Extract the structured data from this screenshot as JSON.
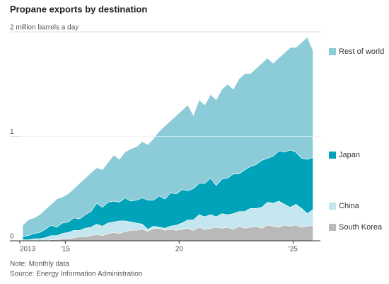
{
  "chart_data": {
    "type": "stacked-area",
    "title": "Propane exports by destination",
    "notes": [
      "Note: Monthly data",
      "Source: Energy Information Administration"
    ],
    "x": [
      2013.125,
      2013.375,
      2013.625,
      2013.875,
      2014.125,
      2014.375,
      2014.625,
      2014.875,
      2015.125,
      2015.375,
      2015.625,
      2015.875,
      2016.125,
      2016.375,
      2016.625,
      2016.875,
      2017.125,
      2017.375,
      2017.625,
      2017.875,
      2018.125,
      2018.375,
      2018.625,
      2018.875,
      2019.125,
      2019.375,
      2019.625,
      2019.875,
      2020.125,
      2020.375,
      2020.625,
      2020.875,
      2021.125,
      2021.375,
      2021.625,
      2021.875,
      2022.125,
      2022.375,
      2022.625,
      2022.875,
      2023.125,
      2023.375,
      2023.625,
      2023.875,
      2024.125,
      2024.375,
      2024.625,
      2024.875,
      2025.125,
      2025.375,
      2025.625,
      2025.875
    ],
    "series": [
      {
        "name": "South Korea",
        "color": "#b9b9b9",
        "values": [
          0,
          0,
          0,
          0,
          0,
          0.01,
          0.01,
          0.02,
          0.02,
          0.03,
          0.04,
          0.04,
          0.05,
          0.06,
          0.05,
          0.07,
          0.08,
          0.07,
          0.09,
          0.1,
          0.1,
          0.11,
          0.09,
          0.12,
          0.12,
          0.1,
          0.11,
          0.1,
          0.11,
          0.12,
          0.1,
          0.13,
          0.11,
          0.12,
          0.13,
          0.12,
          0.13,
          0.11,
          0.14,
          0.12,
          0.13,
          0.14,
          0.12,
          0.15,
          0.14,
          0.13,
          0.15,
          0.14,
          0.15,
          0.13,
          0.14,
          0.15
        ]
      },
      {
        "name": "China",
        "color": "#c4e6ee",
        "values": [
          0.01,
          0.01,
          0.02,
          0.02,
          0.03,
          0.04,
          0.04,
          0.05,
          0.06,
          0.07,
          0.06,
          0.08,
          0.08,
          0.1,
          0.09,
          0.1,
          0.1,
          0.12,
          0.1,
          0.08,
          0.07,
          0.05,
          0.02,
          0.02,
          0.01,
          0.02,
          0.03,
          0.05,
          0.06,
          0.08,
          0.1,
          0.12,
          0.12,
          0.13,
          0.1,
          0.14,
          0.12,
          0.15,
          0.14,
          0.16,
          0.18,
          0.17,
          0.2,
          0.22,
          0.22,
          0.25,
          0.2,
          0.18,
          0.2,
          0.18,
          0.12,
          0.15
        ]
      },
      {
        "name": "Japan",
        "color": "#00a3b9",
        "values": [
          0.03,
          0.04,
          0.05,
          0.06,
          0.08,
          0.1,
          0.08,
          0.1,
          0.1,
          0.12,
          0.11,
          0.13,
          0.15,
          0.2,
          0.18,
          0.2,
          0.2,
          0.18,
          0.22,
          0.2,
          0.22,
          0.25,
          0.28,
          0.25,
          0.3,
          0.28,
          0.32,
          0.3,
          0.32,
          0.28,
          0.3,
          0.3,
          0.32,
          0.35,
          0.3,
          0.33,
          0.35,
          0.38,
          0.36,
          0.4,
          0.4,
          0.42,
          0.45,
          0.42,
          0.45,
          0.48,
          0.5,
          0.55,
          0.5,
          0.48,
          0.52,
          0.5
        ]
      },
      {
        "name": "Rest of world",
        "color": "#8ccbd8",
        "values": [
          0.11,
          0.15,
          0.15,
          0.17,
          0.19,
          0.2,
          0.27,
          0.25,
          0.27,
          0.28,
          0.34,
          0.35,
          0.37,
          0.34,
          0.36,
          0.38,
          0.44,
          0.41,
          0.44,
          0.5,
          0.51,
          0.54,
          0.53,
          0.59,
          0.62,
          0.7,
          0.69,
          0.75,
          0.76,
          0.82,
          0.7,
          0.8,
          0.75,
          0.8,
          0.82,
          0.86,
          0.9,
          0.81,
          0.91,
          0.92,
          0.89,
          0.92,
          0.93,
          0.96,
          0.89,
          0.89,
          0.95,
          0.98,
          1.0,
          1.11,
          1.17,
          1.02
        ]
      }
    ],
    "xlim": [
      2013,
      2026.2
    ],
    "xticks": [
      2013,
      {
        "value": 2015,
        "label": "'15"
      },
      {
        "value": 2020,
        "label": "20"
      },
      {
        "value": 2025,
        "label": "'25"
      }
    ],
    "ylim": [
      0,
      2
    ],
    "yticks": [
      0,
      1,
      {
        "value": 2,
        "label": "2 million barrels a day"
      }
    ],
    "grid": true
  }
}
